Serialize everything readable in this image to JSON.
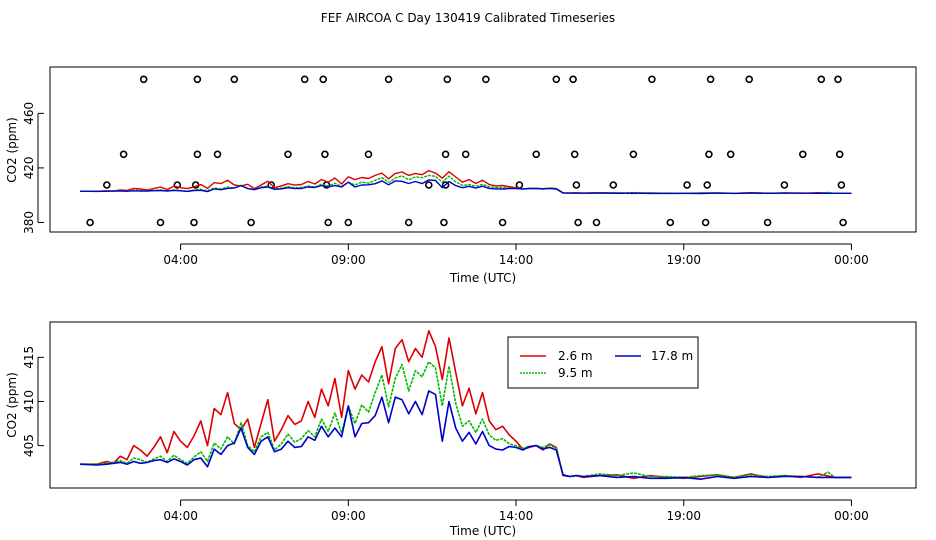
{
  "title": "FEF AIRCOA C  Day 130419  Calibrated Timeseries",
  "colors": {
    "s26": "#dd0000",
    "s95": "#00bb00",
    "s178": "#0000cc",
    "flag": "#000000",
    "frame": "#000000"
  },
  "chart_data": [
    {
      "type": "line",
      "name": "top-panel",
      "xlabel": "Time (UTC)",
      "ylabel": "CO2 (ppm)",
      "xlim": [
        0,
        24
      ],
      "ylim": [
        373,
        494
      ],
      "x_ticks": [
        3,
        8,
        13,
        18,
        23
      ],
      "x_tick_labels": [
        "04:00",
        "09:00",
        "14:00",
        "19:00",
        "00:00"
      ],
      "y_ticks": [
        380,
        420,
        460
      ],
      "y_tick_labels": [
        "380",
        "420",
        "460"
      ],
      "flag_points": [
        {
          "x": 0.3,
          "y": 380
        },
        {
          "x": 0.8,
          "y": 407.5
        },
        {
          "x": 1.3,
          "y": 430
        },
        {
          "x": 1.9,
          "y": 485
        },
        {
          "x": 2.4,
          "y": 380
        },
        {
          "x": 2.9,
          "y": 407.5
        },
        {
          "x": 3.4,
          "y": 380
        },
        {
          "x": 3.45,
          "y": 407.5
        },
        {
          "x": 3.5,
          "y": 430
        },
        {
          "x": 3.5,
          "y": 485
        },
        {
          "x": 4.1,
          "y": 430
        },
        {
          "x": 4.6,
          "y": 485
        },
        {
          "x": 5.1,
          "y": 380
        },
        {
          "x": 5.7,
          "y": 407.5
        },
        {
          "x": 6.2,
          "y": 430
        },
        {
          "x": 6.7,
          "y": 485
        },
        {
          "x": 7.25,
          "y": 485
        },
        {
          "x": 7.3,
          "y": 430
        },
        {
          "x": 7.35,
          "y": 407.5
        },
        {
          "x": 7.4,
          "y": 380
        },
        {
          "x": 8.0,
          "y": 380
        },
        {
          "x": 8.6,
          "y": 430
        },
        {
          "x": 9.2,
          "y": 485
        },
        {
          "x": 9.8,
          "y": 380
        },
        {
          "x": 10.4,
          "y": 407.5
        },
        {
          "x": 10.85,
          "y": 380
        },
        {
          "x": 10.9,
          "y": 407.5
        },
        {
          "x": 10.9,
          "y": 430
        },
        {
          "x": 10.95,
          "y": 485
        },
        {
          "x": 11.5,
          "y": 430
        },
        {
          "x": 12.1,
          "y": 485
        },
        {
          "x": 12.6,
          "y": 380
        },
        {
          "x": 13.1,
          "y": 407.5
        },
        {
          "x": 13.6,
          "y": 430
        },
        {
          "x": 14.2,
          "y": 485
        },
        {
          "x": 14.7,
          "y": 485
        },
        {
          "x": 14.75,
          "y": 430
        },
        {
          "x": 14.8,
          "y": 407.5
        },
        {
          "x": 14.85,
          "y": 380
        },
        {
          "x": 15.4,
          "y": 380
        },
        {
          "x": 15.9,
          "y": 407.5
        },
        {
          "x": 16.5,
          "y": 430
        },
        {
          "x": 17.05,
          "y": 485
        },
        {
          "x": 17.6,
          "y": 380
        },
        {
          "x": 18.1,
          "y": 407.5
        },
        {
          "x": 18.65,
          "y": 380
        },
        {
          "x": 18.7,
          "y": 407.5
        },
        {
          "x": 18.75,
          "y": 430
        },
        {
          "x": 18.8,
          "y": 485
        },
        {
          "x": 19.4,
          "y": 430
        },
        {
          "x": 19.95,
          "y": 485
        },
        {
          "x": 20.5,
          "y": 380
        },
        {
          "x": 21.0,
          "y": 407.5
        },
        {
          "x": 21.55,
          "y": 430
        },
        {
          "x": 22.1,
          "y": 485
        },
        {
          "x": 22.6,
          "y": 485
        },
        {
          "x": 22.65,
          "y": 430
        },
        {
          "x": 22.7,
          "y": 407.5
        },
        {
          "x": 22.75,
          "y": 380
        }
      ]
    },
    {
      "type": "line",
      "name": "bottom-panel",
      "xlabel": "Time (UTC)",
      "ylabel": "CO2 (ppm)",
      "xlim": [
        0,
        24
      ],
      "ylim": [
        400.2,
        419
      ],
      "x_ticks": [
        3,
        8,
        13,
        18,
        23
      ],
      "x_tick_labels": [
        "04:00",
        "09:00",
        "14:00",
        "19:00",
        "00:00"
      ],
      "y_ticks": [
        405,
        410,
        415
      ],
      "y_tick_labels": [
        "405",
        "410",
        "415"
      ],
      "legend": {
        "placement": "top-right"
      },
      "series": [
        {
          "name": "2.6 m",
          "color": "#dd0000",
          "x": [
            0,
            0.5,
            0.8,
            1.0,
            1.2,
            1.4,
            1.6,
            1.8,
            2.0,
            2.2,
            2.4,
            2.6,
            2.8,
            3.0,
            3.2,
            3.4,
            3.6,
            3.8,
            4.0,
            4.2,
            4.4,
            4.6,
            4.8,
            5.0,
            5.2,
            5.4,
            5.6,
            5.8,
            6.0,
            6.2,
            6.4,
            6.6,
            6.8,
            7.0,
            7.2,
            7.4,
            7.6,
            7.8,
            8.0,
            8.2,
            8.4,
            8.6,
            8.8,
            9.0,
            9.2,
            9.4,
            9.6,
            9.8,
            10.0,
            10.2,
            10.4,
            10.6,
            10.8,
            11.0,
            11.2,
            11.4,
            11.6,
            11.8,
            12.0,
            12.2,
            12.4,
            12.6,
            12.8,
            13.0,
            13.2,
            13.4,
            13.6,
            13.8,
            14.0,
            14.2,
            14.4,
            14.6,
            14.8,
            15.0,
            15.5,
            16.0,
            16.5,
            17.0,
            17.5,
            18.0,
            18.5,
            19.0,
            19.5,
            20.0,
            20.5,
            21.0,
            21.5,
            22.0,
            22.5,
            23.0
          ],
          "values": [
            402.9,
            402.9,
            403.2,
            403.0,
            403.8,
            403.4,
            405.0,
            404.5,
            403.8,
            404.8,
            406.0,
            404.2,
            406.6,
            405.5,
            404.8,
            406.1,
            407.8,
            405.0,
            409.2,
            408.5,
            411.0,
            407.5,
            406.8,
            408.0,
            404.8,
            407.5,
            410.2,
            405.5,
            406.8,
            408.4,
            407.4,
            407.8,
            410.0,
            408.2,
            411.4,
            409.5,
            412.6,
            408.2,
            413.5,
            411.4,
            413.0,
            412.2,
            414.5,
            416.2,
            412.0,
            416.0,
            417.0,
            414.5,
            416.0,
            415.0,
            418.0,
            416.2,
            412.5,
            417.2,
            413.3,
            409.5,
            411.5,
            408.6,
            411.0,
            407.8,
            406.8,
            407.2,
            406.2,
            405.5,
            404.6,
            404.8,
            405.0,
            404.5,
            405.2,
            404.8,
            401.6,
            401.5,
            401.6,
            401.4,
            401.6,
            401.7,
            401.3,
            401.6,
            401.4,
            401.3,
            401.5,
            401.7,
            401.4,
            401.8,
            401.4,
            401.6,
            401.4,
            401.8,
            401.4,
            401.4
          ]
        },
        {
          "name": "9.5 m",
          "color": "#00bb00",
          "x": [
            0,
            0.5,
            0.8,
            1.0,
            1.2,
            1.4,
            1.6,
            1.8,
            2.0,
            2.2,
            2.4,
            2.6,
            2.8,
            3.0,
            3.2,
            3.4,
            3.6,
            3.8,
            4.0,
            4.2,
            4.4,
            4.6,
            4.8,
            5.0,
            5.2,
            5.4,
            5.6,
            5.8,
            6.0,
            6.2,
            6.4,
            6.6,
            6.8,
            7.0,
            7.2,
            7.4,
            7.6,
            7.8,
            8.0,
            8.2,
            8.4,
            8.6,
            8.8,
            9.0,
            9.2,
            9.4,
            9.6,
            9.8,
            10.0,
            10.2,
            10.4,
            10.6,
            10.8,
            11.0,
            11.2,
            11.4,
            11.6,
            11.8,
            12.0,
            12.2,
            12.4,
            12.6,
            12.8,
            13.0,
            13.2,
            13.4,
            13.6,
            13.8,
            14.0,
            14.2,
            14.4,
            14.6,
            14.8,
            15.0,
            15.5,
            16.0,
            16.5,
            17.0,
            17.5,
            18.0,
            18.5,
            19.0,
            19.5,
            20.0,
            20.5,
            21.0,
            21.5,
            22.0,
            22.3,
            22.5,
            23.0
          ],
          "values": [
            402.9,
            402.9,
            403.0,
            403.1,
            403.3,
            403.0,
            403.6,
            403.4,
            403.1,
            403.5,
            403.8,
            403.2,
            403.9,
            403.4,
            403.0,
            403.7,
            404.3,
            403.2,
            405.3,
            404.6,
            406.0,
            405.2,
            407.6,
            405.0,
            404.3,
            406.0,
            406.5,
            404.5,
            405.2,
            406.3,
            405.4,
            405.8,
            406.7,
            406.0,
            408.0,
            406.6,
            408.7,
            406.4,
            409.5,
            407.5,
            409.6,
            408.8,
            411.0,
            413.0,
            409.4,
            412.6,
            414.2,
            411.2,
            413.5,
            412.8,
            414.5,
            413.8,
            409.5,
            414.0,
            409.8,
            407.2,
            407.8,
            406.5,
            408.0,
            406.2,
            405.6,
            405.8,
            405.2,
            405.0,
            404.7,
            404.9,
            405.0,
            404.8,
            405.1,
            404.7,
            401.7,
            401.5,
            401.6,
            401.5,
            401.8,
            401.6,
            401.9,
            401.5,
            401.5,
            401.4,
            401.6,
            401.7,
            401.4,
            401.7,
            401.5,
            401.6,
            401.5,
            401.4,
            402.0,
            401.4,
            401.4
          ]
        },
        {
          "name": "17.8 m",
          "color": "#0000cc",
          "x": [
            0,
            0.5,
            0.8,
            1.0,
            1.2,
            1.4,
            1.6,
            1.8,
            2.0,
            2.2,
            2.4,
            2.6,
            2.8,
            3.0,
            3.2,
            3.4,
            3.6,
            3.8,
            4.0,
            4.2,
            4.4,
            4.6,
            4.8,
            5.0,
            5.2,
            5.4,
            5.6,
            5.8,
            6.0,
            6.2,
            6.4,
            6.6,
            6.8,
            7.0,
            7.2,
            7.4,
            7.6,
            7.8,
            8.0,
            8.2,
            8.4,
            8.6,
            8.8,
            9.0,
            9.2,
            9.4,
            9.6,
            9.8,
            10.0,
            10.2,
            10.4,
            10.6,
            10.8,
            11.0,
            11.2,
            11.4,
            11.6,
            11.8,
            12.0,
            12.2,
            12.4,
            12.6,
            12.8,
            13.0,
            13.2,
            13.4,
            13.6,
            13.8,
            14.0,
            14.2,
            14.4,
            14.6,
            14.8,
            15.0,
            15.5,
            16.0,
            16.5,
            17.0,
            17.5,
            18.0,
            18.5,
            19.0,
            19.5,
            20.0,
            20.5,
            21.0,
            21.5,
            22.0,
            22.5,
            23.0
          ],
          "values": [
            402.9,
            402.8,
            402.9,
            403.0,
            403.1,
            402.9,
            403.2,
            403.0,
            403.1,
            403.3,
            403.4,
            403.1,
            403.5,
            403.2,
            402.8,
            403.4,
            403.6,
            402.6,
            404.6,
            404.0,
            405.0,
            405.3,
            407.0,
            404.8,
            404.0,
            405.5,
            406.0,
            404.3,
            404.6,
            405.5,
            404.8,
            404.9,
            406.0,
            405.6,
            407.2,
            406.0,
            407.0,
            406.0,
            409.5,
            406.0,
            407.5,
            407.6,
            408.4,
            410.5,
            407.6,
            410.5,
            410.2,
            408.6,
            410.0,
            408.5,
            411.2,
            410.8,
            405.5,
            410.0,
            407.0,
            405.5,
            406.5,
            405.2,
            406.6,
            405.0,
            404.6,
            404.5,
            404.9,
            404.8,
            404.5,
            404.9,
            405.0,
            404.6,
            404.8,
            404.5,
            401.7,
            401.5,
            401.6,
            401.5,
            401.6,
            401.4,
            401.5,
            401.3,
            401.3,
            401.4,
            401.2,
            401.5,
            401.3,
            401.5,
            401.4,
            401.5,
            401.5,
            401.4,
            401.4,
            401.4
          ]
        }
      ]
    }
  ]
}
